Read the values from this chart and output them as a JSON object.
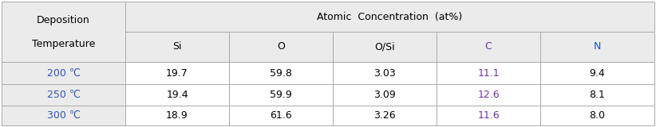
{
  "header_main": "Atomic  Concentration  (at%)",
  "header_row": [
    "Si",
    "O",
    "O/Si",
    "C",
    "N"
  ],
  "row_labels": [
    "200 ℃",
    "250 ℃",
    "300 ℃"
  ],
  "deposition_label": "Deposition\n\nTemperature",
  "table_data": [
    [
      "19.7",
      "59.8",
      "3.03",
      "11.1",
      "9.4"
    ],
    [
      "19.4",
      "59.9",
      "3.09",
      "12.6",
      "8.1"
    ],
    [
      "18.9",
      "61.6",
      "3.26",
      "11.6",
      "8.0"
    ]
  ],
  "bg_gray": "#ebebeb",
  "bg_white": "#ffffff",
  "border_color": "#aaaaaa",
  "text_black": "#000000",
  "text_blue": "#3355bb",
  "text_purple": "#7030a0",
  "text_navy": "#1155cc",
  "font_size": 9.0
}
